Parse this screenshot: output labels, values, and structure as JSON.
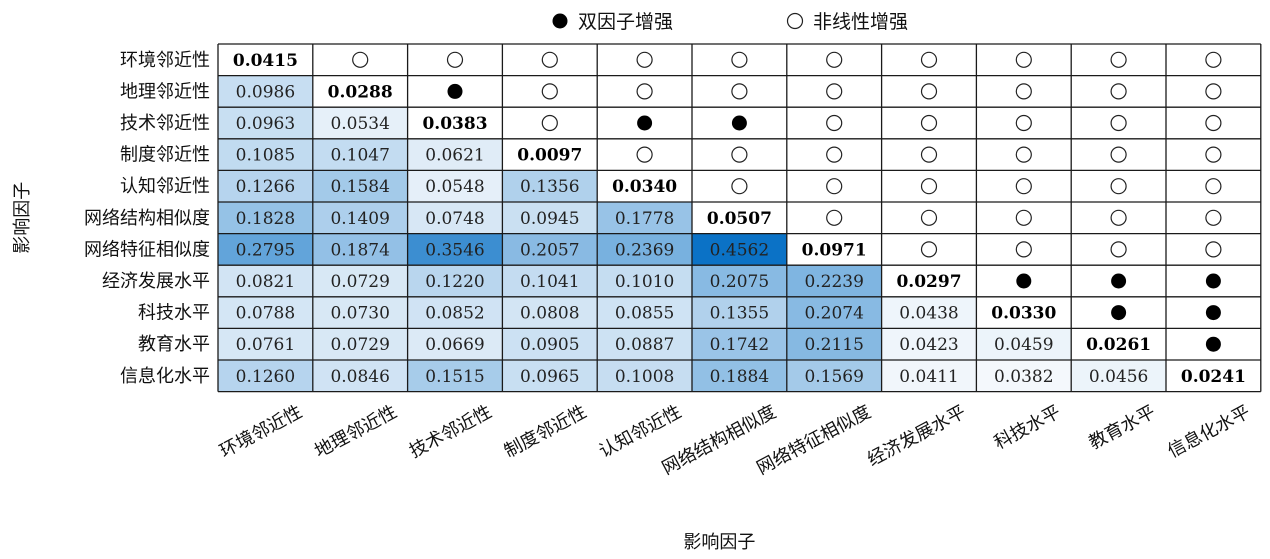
{
  "chart_data": {
    "type": "heatmap",
    "xlabel": "影响因子",
    "ylabel": "影响因子",
    "legend": [
      {
        "symbol": "filled-circle-icon",
        "label": "双因子增强"
      },
      {
        "symbol": "open-circle-icon",
        "label": "非线性增强"
      }
    ],
    "factors": [
      "环境邻近性",
      "地理邻近性",
      "技术邻近性",
      "制度邻近性",
      "认知邻近性",
      "网络结构相似度",
      "网络特征相似度",
      "经济发展水平",
      "科技水平",
      "教育水平",
      "信息化水平"
    ],
    "values": [
      [
        0.0415,
        null,
        null,
        null,
        null,
        null,
        null,
        null,
        null,
        null,
        null
      ],
      [
        0.0986,
        0.0288,
        null,
        null,
        null,
        null,
        null,
        null,
        null,
        null,
        null
      ],
      [
        0.0963,
        0.0534,
        0.0383,
        null,
        null,
        null,
        null,
        null,
        null,
        null,
        null
      ],
      [
        0.1085,
        0.1047,
        0.0621,
        0.0097,
        null,
        null,
        null,
        null,
        null,
        null,
        null
      ],
      [
        0.1266,
        0.1584,
        0.0548,
        0.1356,
        0.034,
        null,
        null,
        null,
        null,
        null,
        null
      ],
      [
        0.1828,
        0.1409,
        0.0748,
        0.0945,
        0.1778,
        0.0507,
        null,
        null,
        null,
        null,
        null
      ],
      [
        0.2795,
        0.1874,
        0.3546,
        0.2057,
        0.2369,
        0.4562,
        0.0971,
        null,
        null,
        null,
        null
      ],
      [
        0.0821,
        0.0729,
        0.122,
        0.1041,
        0.101,
        0.2075,
        0.2239,
        0.0297,
        null,
        null,
        null
      ],
      [
        0.0788,
        0.073,
        0.0852,
        0.0808,
        0.0855,
        0.1355,
        0.2074,
        0.0438,
        0.033,
        null,
        null
      ],
      [
        0.0761,
        0.0729,
        0.0669,
        0.0905,
        0.0887,
        0.1742,
        0.2115,
        0.0423,
        0.0459,
        0.0261,
        null
      ],
      [
        0.126,
        0.0846,
        0.1515,
        0.0965,
        0.1008,
        0.1884,
        0.1569,
        0.0411,
        0.0382,
        0.0456,
        0.0241
      ]
    ],
    "interaction_types": [
      [
        null,
        "O",
        "O",
        "O",
        "O",
        "O",
        "O",
        "O",
        "O",
        "O",
        "O"
      ],
      [
        null,
        null,
        "B",
        "O",
        "O",
        "O",
        "O",
        "O",
        "O",
        "O",
        "O"
      ],
      [
        null,
        null,
        null,
        "O",
        "B",
        "B",
        "O",
        "O",
        "O",
        "O",
        "O"
      ],
      [
        null,
        null,
        null,
        null,
        "O",
        "O",
        "O",
        "O",
        "O",
        "O",
        "O"
      ],
      [
        null,
        null,
        null,
        null,
        null,
        "O",
        "O",
        "O",
        "O",
        "O",
        "O"
      ],
      [
        null,
        null,
        null,
        null,
        null,
        null,
        "O",
        "O",
        "O",
        "O",
        "O"
      ],
      [
        null,
        null,
        null,
        null,
        null,
        null,
        null,
        "O",
        "O",
        "O",
        "O"
      ],
      [
        null,
        null,
        null,
        null,
        null,
        null,
        null,
        null,
        "B",
        "B",
        "B"
      ],
      [
        null,
        null,
        null,
        null,
        null,
        null,
        null,
        null,
        null,
        "B",
        "B"
      ],
      [
        null,
        null,
        null,
        null,
        null,
        null,
        null,
        null,
        null,
        null,
        "B"
      ],
      [
        null,
        null,
        null,
        null,
        null,
        null,
        null,
        null,
        null,
        null,
        null
      ]
    ],
    "color_scale": {
      "low": "#f4f8fc",
      "high": "#0b72c6",
      "diagonal_fill": "#ffffff"
    }
  }
}
